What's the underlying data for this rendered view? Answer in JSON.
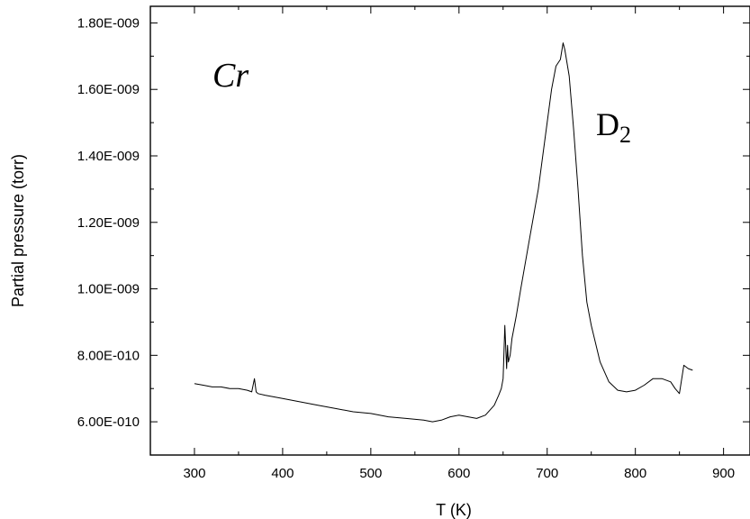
{
  "chart_data": {
    "type": "line",
    "title": "",
    "xlabel": "T (K)",
    "ylabel": "Partial pressure (torr)",
    "xlim": [
      250,
      930
    ],
    "ylim": [
      5e-10,
      1.85e-09
    ],
    "x_ticks": [
      {
        "value": 300,
        "label": "300"
      },
      {
        "value": 400,
        "label": "400"
      },
      {
        "value": 500,
        "label": "500"
      },
      {
        "value": 600,
        "label": "600"
      },
      {
        "value": 700,
        "label": "700"
      },
      {
        "value": 800,
        "label": "800"
      },
      {
        "value": 900,
        "label": "900"
      }
    ],
    "y_ticks": [
      {
        "value": 6e-10,
        "label": "6.00E-010"
      },
      {
        "value": 8e-10,
        "label": "8.00E-010"
      },
      {
        "value": 1e-09,
        "label": "1.00E-009"
      },
      {
        "value": 1.2e-09,
        "label": "1.20E-009"
      },
      {
        "value": 1.4e-09,
        "label": "1.40E-009"
      },
      {
        "value": 1.6e-09,
        "label": "1.60E-009"
      },
      {
        "value": 1.8e-09,
        "label": "1.80E-009"
      }
    ],
    "grid": false,
    "line_color": "#000000",
    "annotations": {
      "element": "Cr",
      "species": "D",
      "species_subscript": "2"
    },
    "series": [
      {
        "x": [
          300,
          310,
          320,
          330,
          340,
          350,
          360,
          365,
          368,
          370,
          372,
          380,
          400,
          420,
          440,
          460,
          480,
          500,
          520,
          540,
          560,
          570,
          580,
          590,
          600,
          620,
          630,
          640,
          645,
          648,
          650,
          652,
          654,
          655,
          656,
          658,
          660,
          665,
          670,
          680,
          690,
          700,
          705,
          710,
          715,
          718,
          720,
          725,
          730,
          735,
          740,
          745,
          750,
          760,
          770,
          780,
          790,
          800,
          810,
          820,
          830,
          840,
          845,
          850,
          855,
          860,
          865
        ],
        "y": [
          7.15e-10,
          7.1e-10,
          7.05e-10,
          7.05e-10,
          7e-10,
          7e-10,
          6.95e-10,
          6.9e-10,
          7.3e-10,
          6.9e-10,
          6.85e-10,
          6.8e-10,
          6.7e-10,
          6.6e-10,
          6.5e-10,
          6.4e-10,
          6.3e-10,
          6.25e-10,
          6.15e-10,
          6.1e-10,
          6.05e-10,
          6e-10,
          6.05e-10,
          6.15e-10,
          6.2e-10,
          6.1e-10,
          6.2e-10,
          6.5e-10,
          6.8e-10,
          7e-10,
          7.3e-10,
          8.9e-10,
          7.6e-10,
          8.3e-10,
          7.8e-10,
          8e-10,
          8.5e-10,
          9.2e-10,
          1e-09,
          1.15e-09,
          1.3e-09,
          1.5e-09,
          1.6e-09,
          1.67e-09,
          1.69e-09,
          1.74e-09,
          1.72e-09,
          1.64e-09,
          1.48e-09,
          1.3e-09,
          1.1e-09,
          9.6e-10,
          8.9e-10,
          7.8e-10,
          7.2e-10,
          6.95e-10,
          6.9e-10,
          6.95e-10,
          7.1e-10,
          7.3e-10,
          7.3e-10,
          7.2e-10,
          7e-10,
          6.85e-10,
          7.7e-10,
          7.6e-10,
          7.55e-10
        ]
      }
    ]
  }
}
